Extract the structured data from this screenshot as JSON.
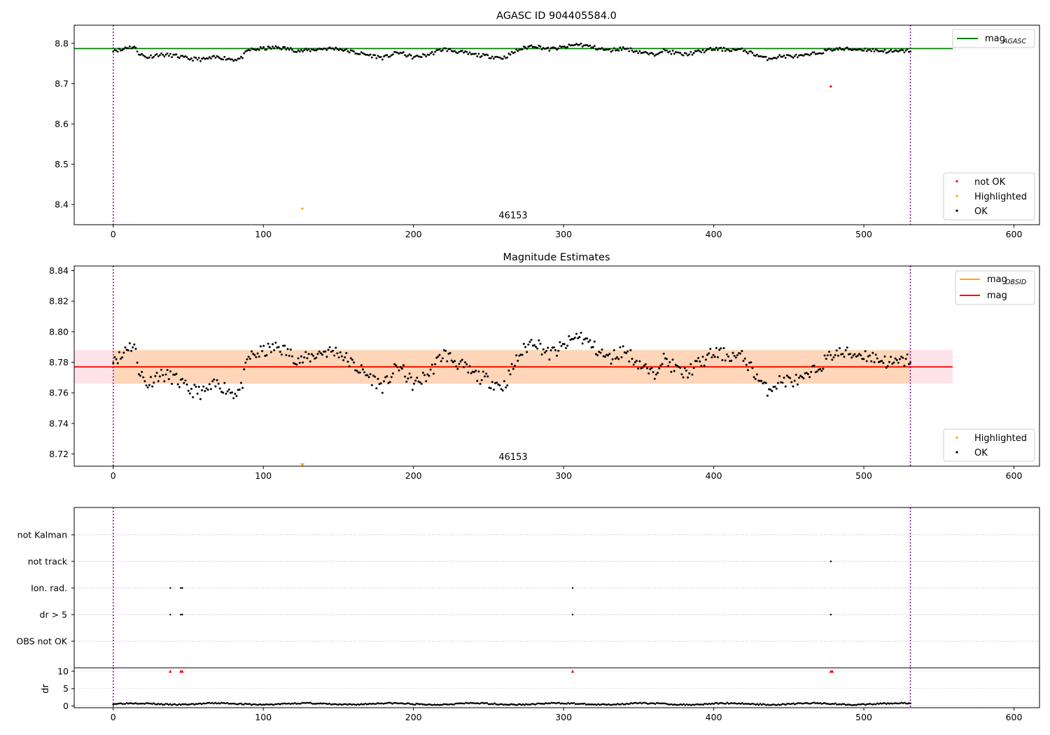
{
  "chart_data": [
    {
      "type": "scatter",
      "title": "AGASC ID 904405584.0",
      "xlim": [
        -26,
        617
      ],
      "ylim": [
        8.35,
        8.845
      ],
      "xticks": [
        0,
        100,
        200,
        300,
        400,
        500,
        600
      ],
      "xtick_labels": [
        "0",
        "100",
        "200",
        "300",
        "400",
        "500",
        "600"
      ],
      "yticks": [
        8.4,
        8.5,
        8.6,
        8.7,
        8.8
      ],
      "ytick_labels": [
        "8.4",
        "8.5",
        "8.6",
        "8.7",
        "8.8"
      ],
      "mag_agasc": 8.787,
      "obs_start": 0,
      "obs_end": 531,
      "obsid_label": "46153",
      "obsid_label_x": 265,
      "ok_series": {
        "name": "OK",
        "color": "#000000",
        "x_start": 0,
        "x_end": 531,
        "count": 531,
        "segments": [
          {
            "x": [
              0,
              6,
              8,
              14,
              17,
              22,
              30,
              40,
              50,
              60,
              70,
              80,
              85,
              90,
              100,
              110,
              125,
              140,
              150,
              160,
              180,
              190,
              200,
              210,
              220,
              240,
              260,
              270,
              280,
              290,
              300,
              310,
              320,
              330,
              340,
              360,
              365,
              380,
              400,
              420,
              435,
              445,
              460,
              480,
              500,
              520,
              531
            ],
            "y": [
              8.784,
              8.783,
              8.79,
              8.791,
              8.776,
              8.765,
              8.772,
              8.77,
              8.762,
              8.76,
              8.766,
              8.76,
              8.762,
              8.783,
              8.787,
              8.79,
              8.781,
              8.787,
              8.787,
              8.778,
              8.764,
              8.778,
              8.765,
              8.772,
              8.786,
              8.772,
              8.764,
              8.784,
              8.795,
              8.785,
              8.79,
              8.798,
              8.79,
              8.782,
              8.788,
              8.771,
              8.783,
              8.772,
              8.786,
              8.783,
              8.762,
              8.768,
              8.768,
              8.786,
              8.785,
              8.779,
              8.782
            ]
          }
        ],
        "jitter": 0.009
      },
      "highlighted": {
        "name": "Highlighted",
        "color": "#ffa500",
        "points": [
          {
            "x": 126,
            "y": 8.39
          }
        ]
      },
      "not_ok": {
        "name": "not OK",
        "color": "#ff0000",
        "points": [
          {
            "x": 478,
            "y": 8.693
          }
        ]
      },
      "legend_lines": [
        {
          "label": "mag",
          "sub": "AGASC",
          "color": "#008000"
        }
      ],
      "legend_points": [
        {
          "label": "not OK",
          "color": "#ff0000"
        },
        {
          "label": "Highlighted",
          "color": "#ffa500"
        },
        {
          "label": "OK",
          "color": "#000000"
        }
      ]
    },
    {
      "type": "scatter",
      "title": "Magnitude Estimates",
      "xlim": [
        -26,
        617
      ],
      "ylim": [
        8.712,
        8.843
      ],
      "xticks": [
        0,
        100,
        200,
        300,
        400,
        500,
        600
      ],
      "xtick_labels": [
        "0",
        "100",
        "200",
        "300",
        "400",
        "500",
        "600"
      ],
      "yticks": [
        8.72,
        8.74,
        8.76,
        8.78,
        8.8,
        8.82,
        8.84
      ],
      "ytick_labels": [
        "8.72",
        "8.74",
        "8.76",
        "8.78",
        "8.80",
        "8.82",
        "8.84"
      ],
      "mag": 8.777,
      "mag_band_red": [
        8.766,
        8.788
      ],
      "mag_obsid_band": [
        8.766,
        8.788
      ],
      "mag_obsid": 8.777,
      "obs_start": 0,
      "obs_end": 531,
      "obsid_label": "46153",
      "obsid_label_x": 265,
      "highlighted_marker": {
        "x": 126,
        "y": 8.713,
        "color": "#ffa500"
      },
      "ok_series": {
        "name": "OK",
        "color": "#000000",
        "x_start": 0,
        "x_end": 531,
        "count": 531,
        "segments": [
          {
            "x": [
              0,
              6,
              8,
              14,
              17,
              22,
              30,
              40,
              50,
              60,
              70,
              80,
              85,
              90,
              100,
              110,
              125,
              140,
              150,
              160,
              180,
              190,
              200,
              210,
              220,
              240,
              260,
              270,
              280,
              290,
              300,
              310,
              320,
              330,
              340,
              360,
              365,
              380,
              400,
              420,
              435,
              445,
              460,
              480,
              500,
              520,
              531
            ],
            "y": [
              8.784,
              8.783,
              8.79,
              8.791,
              8.776,
              8.765,
              8.772,
              8.77,
              8.762,
              8.76,
              8.766,
              8.76,
              8.762,
              8.783,
              8.787,
              8.79,
              8.781,
              8.787,
              8.787,
              8.778,
              8.764,
              8.778,
              8.765,
              8.772,
              8.786,
              8.772,
              8.764,
              8.784,
              8.795,
              8.785,
              8.79,
              8.798,
              8.79,
              8.782,
              8.788,
              8.771,
              8.783,
              8.772,
              8.786,
              8.783,
              8.762,
              8.768,
              8.768,
              8.786,
              8.785,
              8.779,
              8.782
            ]
          }
        ],
        "jitter": 0.009
      },
      "legend_lines": [
        {
          "label": "mag",
          "sub": "OBSID",
          "color": "#ffa500"
        },
        {
          "label": "mag",
          "sub": "",
          "color": "#ff0000"
        }
      ],
      "legend_points": [
        {
          "label": "Highlighted",
          "color": "#ffa500"
        },
        {
          "label": "OK",
          "color": "#000000"
        }
      ]
    },
    {
      "type": "scatter",
      "title": "",
      "xlim": [
        -26,
        617
      ],
      "categories": [
        "not Kalman",
        "not track",
        "Ion. rad.",
        "dr > 5",
        "OBS not OK"
      ],
      "flags": {
        "not Kalman": [],
        "not track": [
          478
        ],
        "Ion. rad.": [
          38,
          45,
          46,
          306
        ],
        "dr > 5": [
          38,
          45,
          46,
          306,
          478
        ],
        "OBS not OK": []
      },
      "obs_start": 0,
      "obs_end": 531
    },
    {
      "type": "scatter",
      "title": "",
      "ylabel": "dr",
      "xlim": [
        -26,
        617
      ],
      "ylim": [
        -0.5,
        11
      ],
      "yticks": [
        0,
        5,
        10
      ],
      "ytick_labels": [
        "0",
        "5",
        "10"
      ],
      "xticks": [
        0,
        100,
        200,
        300,
        400,
        500,
        600
      ],
      "xtick_labels": [
        "0",
        "100",
        "200",
        "300",
        "400",
        "500",
        "600"
      ],
      "dr_points": {
        "x_start": 0,
        "x_end": 531,
        "base": 0.6,
        "amp": 0.35
      },
      "dr_high_points": [
        {
          "x": 38,
          "y": 10
        },
        {
          "x": 45,
          "y": 10
        },
        {
          "x": 46,
          "y": 10
        },
        {
          "x": 306,
          "y": 10
        },
        {
          "x": 478,
          "y": 10
        },
        {
          "x": 479,
          "y": 10
        }
      ],
      "obs_start": 0,
      "obs_end": 531
    }
  ]
}
